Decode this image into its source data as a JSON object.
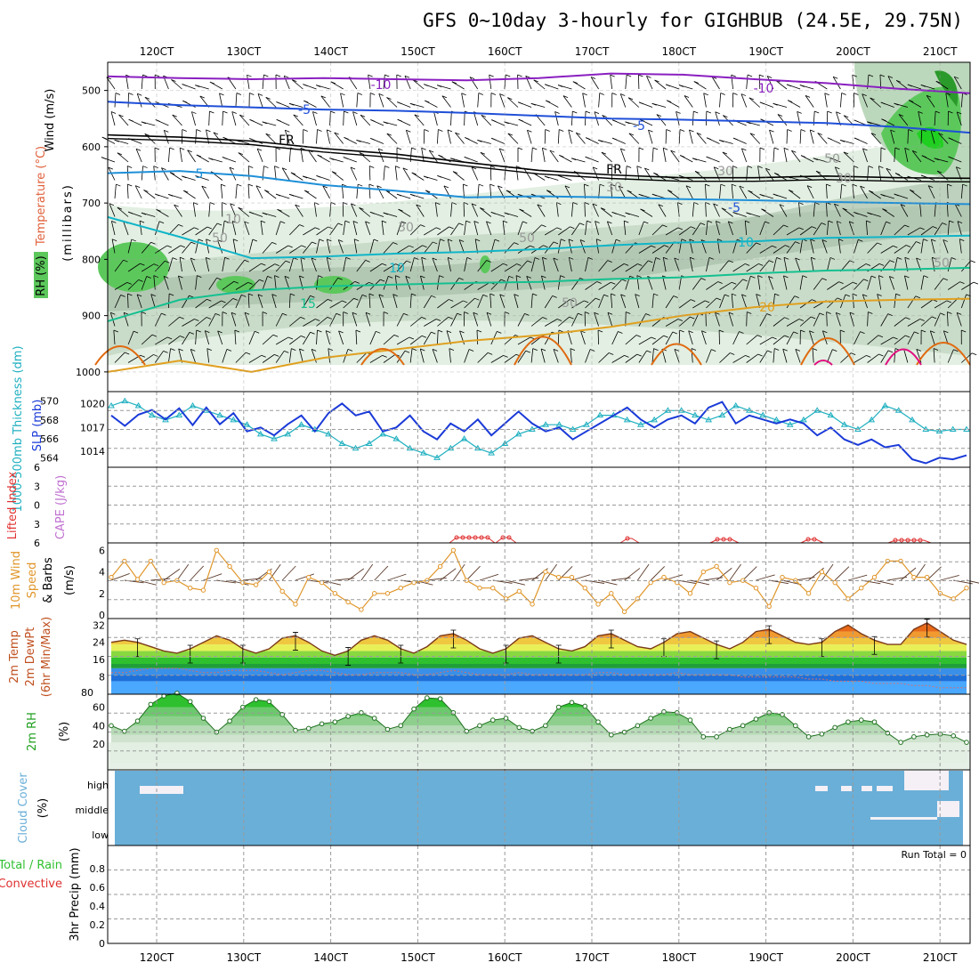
{
  "title": "GFS 0~10day 3-hourly for GIGHBUB (24.5E, 29.75N)",
  "colors": {
    "grid": "#9a9a9a",
    "temp_minus10": "#8a1fc0",
    "temp_minus5": "#1f4fd8",
    "temp_freezing": "#000000",
    "temp_5": "#1e8fd8",
    "temp_10": "#10b5c8",
    "temp_15": "#14c090",
    "temp_20": "#e0a020",
    "temp_25": "#e06a10",
    "temp_30": "#e01080",
    "rh_fill": "#5cc85c",
    "slp": "#1a3ad8",
    "thickness": "#20b0c0",
    "lifted": "#e03030",
    "wind": "#e0962a",
    "cloud": "#6aafd8",
    "precip_total": "#30c030",
    "precip_conv": "#e03030"
  },
  "chart_data": [
    {
      "type": "line",
      "panel": "upper-air time-height cross section",
      "title": "GFS 0~10day 3-hourly for GIGHBUB (24.5E, 29.75N)",
      "xlabel": "time",
      "x_ticks": [
        "120CT",
        "130CT",
        "140CT",
        "150CT",
        "160CT",
        "170CT",
        "180CT",
        "190CT",
        "200CT",
        "210CT"
      ],
      "ylabel": "(millibars)",
      "y_ticks": [
        500,
        600,
        700,
        800,
        900,
        1000
      ],
      "ylim": [
        1000,
        450
      ],
      "side_labels": {
        "wind": "Wind (m/s)",
        "temperature": "Temperature (°C)",
        "rh": "RH (%)",
        "units": "(millibars)"
      },
      "contour_labels": [
        "-10",
        "-10",
        "-5",
        "-5",
        "FR",
        "FR",
        "5",
        "-5",
        "10",
        "10",
        "15",
        "20",
        "10",
        "30",
        "30",
        "50",
        "30",
        "50",
        "50",
        "30",
        "50",
        "50"
      ],
      "series": [
        {
          "name": "-10",
          "level_mb": [
            475,
            478,
            480,
            478,
            480,
            482,
            478,
            470,
            472,
            480,
            487,
            497,
            505
          ]
        },
        {
          "name": "-5",
          "level_mb": [
            520,
            526,
            530,
            534,
            536,
            540,
            545,
            550,
            552,
            555,
            558,
            565,
            575
          ]
        },
        {
          "name": "FR",
          "level_mb": [
            579,
            583,
            590,
            603,
            613,
            628,
            642,
            650,
            655,
            655,
            652,
            655,
            656
          ]
        },
        {
          "name": "5",
          "level_mb": [
            647,
            643,
            652,
            668,
            678,
            690,
            688,
            690,
            693,
            695,
            698,
            700,
            702
          ]
        },
        {
          "name": "10",
          "level_mb": [
            725,
            760,
            798,
            795,
            790,
            787,
            782,
            775,
            770,
            768,
            762,
            760,
            758
          ]
        },
        {
          "name": "15",
          "level_mb": [
            910,
            872,
            855,
            848,
            845,
            842,
            840,
            835,
            832,
            825,
            820,
            818,
            815
          ]
        },
        {
          "name": "20",
          "level_mb": [
            1000,
            980,
            1000,
            975,
            960,
            945,
            935,
            920,
            900,
            885,
            875,
            872,
            870
          ]
        }
      ]
    },
    {
      "type": "line",
      "panel": "sea level pressure and thickness",
      "ylabel_left": "1000-500mb Thickness (dm)",
      "ylabel_right": "SLP (mb)",
      "y_ticks_left": [
        564,
        566,
        568,
        570
      ],
      "y_ticks_right": [
        1014,
        1017,
        1020
      ],
      "series": [
        {
          "name": "SLP (mb)",
          "values": [
            1018.5,
            1017.2,
            1018.6,
            1019.2,
            1018.0,
            1019.4,
            1017.3,
            1019.5,
            1017.4,
            1018.8,
            1016.5,
            1017.0,
            1016.0,
            1017.4,
            1018.5,
            1016.5,
            1018.8,
            1020.0,
            1018.5,
            1019.0,
            1016.5,
            1017.0,
            1018.5,
            1016.5,
            1015.5,
            1017.5,
            1016.5,
            1018.0,
            1016.0,
            1017.5,
            1019.0,
            1017.5,
            1016.5,
            1017.0,
            1015.5,
            1016.5,
            1017.5,
            1018.5,
            1019.5,
            1018.0,
            1017.0,
            1018.0,
            1018.5,
            1017.5,
            1019.5,
            1020.2,
            1017.5,
            1018.5,
            1018.0,
            1017.5,
            1018.0,
            1017.5,
            1016.0,
            1017.0,
            1015.5,
            1014.8,
            1015.5,
            1014.5,
            1014.8,
            1013.0,
            1012.5,
            1013.2,
            1013.0,
            1013.5
          ]
        },
        {
          "name": "1000-500mb Thickness (dm)",
          "values": [
            569.5,
            570.0,
            569.5,
            568.5,
            568.0,
            568.5,
            569.5,
            569.0,
            568.5,
            568.0,
            567.5,
            566.5,
            566.0,
            566.5,
            567.5,
            567.0,
            566.5,
            565.5,
            565.0,
            565.5,
            566.5,
            566.0,
            565.0,
            564.5,
            564.0,
            565.0,
            566.0,
            565.0,
            564.5,
            565.5,
            566.5,
            567.0,
            567.5,
            567.5,
            567.0,
            567.5,
            568.5,
            568.5,
            568.0,
            567.5,
            568.0,
            569.0,
            569.0,
            568.5,
            568.0,
            568.5,
            569.5,
            569.0,
            568.5,
            568.0,
            567.5,
            568.0,
            569.0,
            568.5,
            567.5,
            567.0,
            568.0,
            569.5,
            569.0,
            568.0,
            567.0,
            566.8,
            567.0,
            567.0
          ]
        }
      ]
    },
    {
      "type": "line",
      "panel": "stability",
      "ylabel_left": "Lifted Index",
      "ylabel_right": "CAPE (J/kg)",
      "y_ticks": [
        "6",
        "3",
        "0",
        "3",
        "6"
      ],
      "series": [
        {
          "name": "Lifted Index",
          "x_start_tick": 4.9,
          "values_top": [
            6.0,
            5.6,
            5.6,
            6.0,
            5.6,
            6.0,
            5.6,
            5.6,
            6.0,
            5.6,
            5.6,
            6.0,
            5.6,
            6.0,
            5.6,
            5.0,
            5.6,
            6.0,
            5.2,
            4.9,
            5.4,
            6.0
          ]
        }
      ]
    },
    {
      "type": "line",
      "panel": "10m wind",
      "ylabel": "10m Wind Speed & Barbs (m/s)",
      "y_ticks": [
        0,
        2,
        4,
        6
      ],
      "series": [
        {
          "name": "10m Wind Speed",
          "values": [
            3.5,
            5.0,
            3.3,
            5.0,
            3.0,
            3.2,
            2.5,
            2.3,
            6.0,
            4.5,
            3.0,
            2.8,
            4.0,
            2.2,
            1.0,
            3.5,
            3.0,
            2.0,
            1.2,
            0.5,
            2.0,
            2.0,
            2.5,
            3.0,
            3.2,
            4.5,
            6.0,
            3.2,
            2.5,
            2.5,
            1.5,
            2.2,
            1.0,
            4.0,
            3.5,
            3.5,
            2.5,
            1.0,
            2.0,
            0.3,
            1.5,
            3.0,
            3.5,
            3.0,
            2.0,
            4.0,
            4.5,
            3.0,
            3.2,
            2.5,
            0.8,
            3.5,
            3.2,
            2.0,
            4.0,
            3.0,
            1.5,
            2.5,
            3.5,
            5.0,
            5.0,
            3.5,
            3.5,
            2.0,
            1.5,
            2.5
          ]
        }
      ]
    },
    {
      "type": "area",
      "panel": "2m temperature",
      "ylabel": "2m Temp 2m DewPt (6hr Min/Max)",
      "y_ticks": [
        8,
        16,
        24,
        32
      ],
      "series": [
        {
          "name": "2m Temp",
          "values": [
            24,
            25,
            24,
            22,
            20,
            19,
            21,
            24,
            27,
            25,
            21,
            19,
            21,
            26,
            27,
            24,
            20,
            18,
            20,
            25,
            27,
            25,
            21,
            19,
            22,
            27,
            28,
            25,
            21,
            19,
            21,
            26,
            27,
            24,
            21,
            20,
            22,
            27,
            28,
            25,
            22,
            21,
            24,
            28,
            29,
            26,
            23,
            21,
            24,
            29,
            30,
            27,
            24,
            23,
            24,
            29,
            32,
            28,
            25,
            23,
            23,
            30,
            33,
            29,
            25,
            23
          ]
        },
        {
          "name": "2m DewPt",
          "values": [
            10,
            10,
            11,
            12,
            12,
            12,
            11,
            10,
            10,
            11,
            11,
            11,
            10,
            9,
            10,
            11,
            11,
            10,
            9,
            9,
            10,
            10,
            10,
            9,
            9,
            10,
            11,
            10,
            9,
            9,
            9,
            10,
            9,
            9,
            9,
            9,
            9,
            10,
            10,
            9,
            9,
            9,
            9,
            10,
            9,
            9,
            9,
            9,
            8,
            8,
            8,
            8,
            8,
            7,
            7,
            6,
            6,
            6,
            5,
            5,
            5,
            4,
            4,
            3,
            3,
            3
          ]
        }
      ]
    },
    {
      "type": "area",
      "panel": "2m relative humidity",
      "ylabel": "2m RH (%)",
      "y_ticks": [
        20,
        40,
        60
      ],
      "series": [
        {
          "name": "2m RH",
          "values": [
            40,
            34,
            45,
            63,
            72,
            75,
            66,
            48,
            33,
            45,
            60,
            68,
            66,
            52,
            35,
            37,
            42,
            44,
            50,
            54,
            48,
            36,
            40,
            58,
            70,
            69,
            54,
            34,
            40,
            46,
            48,
            38,
            34,
            40,
            60,
            65,
            61,
            44,
            30,
            33,
            40,
            48,
            55,
            54,
            46,
            28,
            28,
            36,
            40,
            47,
            54,
            52,
            40,
            28,
            31,
            38,
            44,
            46,
            44,
            32,
            22,
            28,
            30,
            31,
            29,
            22
          ]
        }
      ]
    },
    {
      "type": "heatmap",
      "panel": "cloud cover",
      "ylabel": "Cloud Cover (%)",
      "y_ticks": [
        "high",
        "middle",
        "low"
      ],
      "layers": [
        "high",
        "middle",
        "low"
      ],
      "fill": "near-full coverage across the period with small clear patches"
    },
    {
      "type": "bar",
      "panel": "precipitation",
      "ylabel": "3hr Precip (mm)",
      "legend": [
        "Total / Rain",
        "Convective"
      ],
      "y_ticks": [
        0,
        0.2,
        0.4,
        0.6,
        0.8
      ],
      "ylim": [
        0,
        1.0
      ],
      "run_total_label": "Run Total = 0",
      "values": [],
      "x_ticks": [
        "120CT",
        "130CT",
        "140CT",
        "150CT",
        "160CT",
        "170CT",
        "180CT",
        "190CT",
        "200CT",
        "210CT"
      ]
    }
  ]
}
